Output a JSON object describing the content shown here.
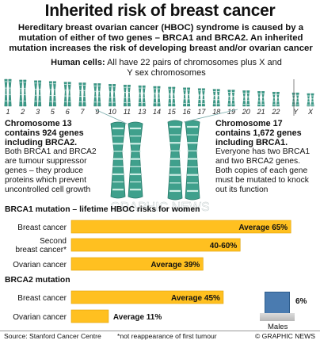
{
  "title": "Inherited risk of breast cancer",
  "intro": "Hereditary breast ovarian cancer (HBOC) syndrome is caused by a mutation of either of two genes – BRCA1 and BRCA2. An inherited mutation increases the risk of developing breast and/or ovarian cancer",
  "human_cells": {
    "label": "Human cells:",
    "text": "All have 22 pairs of chromosomes plus X and Y sex chromosomes"
  },
  "chromosome_labels": [
    "1",
    "2",
    "3",
    "5",
    "6",
    "7",
    "9",
    "10",
    "11",
    "13",
    "14",
    "15",
    "16",
    "17",
    "18",
    "19",
    "20",
    "21",
    "22",
    "Y",
    "X"
  ],
  "chr13": {
    "head": "Chromosome 13 contains 924 genes including BRCA2.",
    "body": "Both BRCA1 and BRCA2 are tumour suppressor genes – they produce proteins which prevent uncontrolled cell growth"
  },
  "chr17": {
    "head": "Chromosome 17 contains 1,672 genes including BRCA1.",
    "body": "Everyone has two BRCA1 and two BRCA2 genes. Both copies of each gene must be mutated to knock out its function"
  },
  "watermark": "GRAPHIC NEWS",
  "colors": {
    "bar": "#ffc020",
    "bar_dark": "#e0a000",
    "chromo": "#3a9a88",
    "males": "#4a7bb0"
  },
  "chart_data": {
    "type": "bar",
    "orientation": "horizontal",
    "groups": [
      {
        "title": "BRCA1 mutation – lifetime HBOC risks for women",
        "categories": [
          "Breast cancer",
          "Second breast cancer*",
          "Ovarian cancer"
        ],
        "values": [
          65,
          50,
          39
        ],
        "value_labels": [
          "Average 65%",
          "40-60%",
          "Average 39%"
        ]
      },
      {
        "title": "BRCA2 mutation",
        "categories": [
          "Breast cancer",
          "Ovarian cancer"
        ],
        "values": [
          45,
          11
        ],
        "value_labels": [
          "Average 45%",
          "Average 11%"
        ]
      }
    ],
    "males": {
      "label": "Males",
      "value": 6,
      "value_label": "6%"
    }
  },
  "footer": {
    "source": "Source: Stanford Cancer Centre",
    "note": "*not reappearance of first tumour",
    "credit": "© GRAPHIC NEWS"
  }
}
